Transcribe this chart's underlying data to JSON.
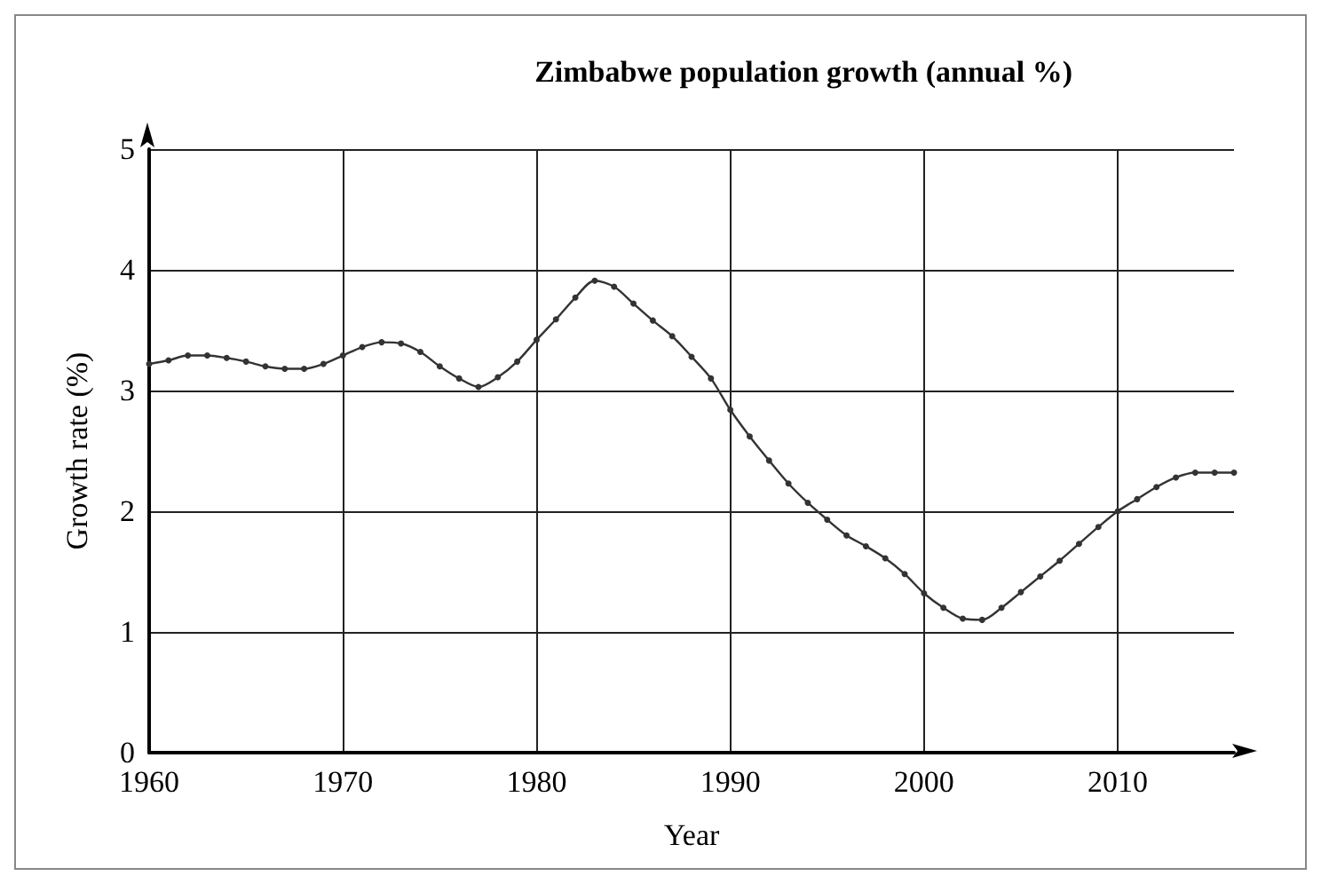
{
  "chart_data": {
    "type": "line",
    "title": "Zimbabwe population growth (annual %)",
    "xlabel": "Year",
    "ylabel": "Growth rate (%)",
    "x": [
      1960,
      1961,
      1962,
      1963,
      1964,
      1965,
      1966,
      1967,
      1968,
      1969,
      1970,
      1971,
      1972,
      1973,
      1974,
      1975,
      1976,
      1977,
      1978,
      1979,
      1980,
      1981,
      1982,
      1983,
      1984,
      1985,
      1986,
      1987,
      1988,
      1989,
      1990,
      1991,
      1992,
      1993,
      1994,
      1995,
      1996,
      1997,
      1998,
      1999,
      2000,
      2001,
      2002,
      2003,
      2004,
      2005,
      2006,
      2007,
      2008,
      2009,
      2010,
      2011,
      2012,
      2013,
      2014,
      2015,
      2016
    ],
    "series": [
      {
        "color": "#333333",
        "values": [
          3.22,
          3.25,
          3.29,
          3.29,
          3.27,
          3.24,
          3.2,
          3.18,
          3.18,
          3.22,
          3.29,
          3.36,
          3.4,
          3.39,
          3.32,
          3.2,
          3.1,
          3.03,
          3.11,
          3.24,
          3.42,
          3.59,
          3.77,
          3.91,
          3.86,
          3.72,
          3.58,
          3.45,
          3.28,
          3.1,
          2.84,
          2.62,
          2.42,
          2.23,
          2.07,
          1.93,
          1.8,
          1.71,
          1.61,
          1.48,
          1.32,
          1.2,
          1.11,
          1.1,
          1.2,
          1.33,
          1.46,
          1.59,
          1.73,
          1.87,
          2.0,
          2.1,
          2.2,
          2.28,
          2.32,
          2.32,
          2.32
        ]
      }
    ],
    "xlim": [
      1960,
      2016
    ],
    "xticks": [
      1960,
      1970,
      1980,
      1990,
      2000,
      2010
    ],
    "ylim": [
      0,
      5
    ],
    "yticks": [
      0,
      1,
      2,
      3,
      4,
      5
    ],
    "grid": true,
    "marker": "circle",
    "line_style": "solid"
  }
}
